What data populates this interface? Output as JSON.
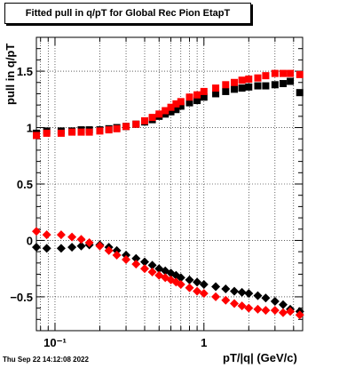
{
  "chart_data": {
    "type": "scatter",
    "title": "Fitted pull in q/pT for Global Rec Pion EtapT",
    "xlabel": "pT/|q| (GeV/c)",
    "ylabel": "pull in q/pT",
    "x_scale": "log",
    "xlim": [
      0.075,
      4.6
    ],
    "ylim": [
      -0.8,
      1.8
    ],
    "grid": true,
    "x_ticks": [
      {
        "value": 0.1,
        "label": "10⁻¹"
      },
      {
        "value": 1,
        "label": "1"
      }
    ],
    "y_ticks": [
      {
        "value": -0.5,
        "label": "−0.5"
      },
      {
        "value": 0,
        "label": "0"
      },
      {
        "value": 0.5,
        "label": "0.5"
      },
      {
        "value": 1,
        "label": "1"
      },
      {
        "value": 1.5,
        "label": "1.5"
      }
    ],
    "colors": {
      "black_series": "#000000",
      "red_series": "#ff0000"
    },
    "series": [
      {
        "color": "black_series",
        "marker": "square",
        "x": [
          0.075,
          0.088,
          0.11,
          0.13,
          0.15,
          0.17,
          0.2,
          0.23,
          0.26,
          0.3,
          0.35,
          0.4,
          0.45,
          0.5,
          0.55,
          0.6,
          0.65,
          0.7,
          0.8,
          0.9,
          1.0,
          1.2,
          1.4,
          1.6,
          1.8,
          2.0,
          2.3,
          2.6,
          3.0,
          3.4,
          3.8,
          4.4
        ],
        "y": [
          0.95,
          0.97,
          0.97,
          0.97,
          0.98,
          0.98,
          0.98,
          0.99,
          1.0,
          1.01,
          1.03,
          1.05,
          1.07,
          1.1,
          1.12,
          1.14,
          1.16,
          1.19,
          1.22,
          1.24,
          1.27,
          1.3,
          1.32,
          1.34,
          1.35,
          1.36,
          1.37,
          1.37,
          1.38,
          1.39,
          1.41,
          1.31
        ]
      },
      {
        "color": "red_series",
        "marker": "square",
        "x": [
          0.075,
          0.088,
          0.11,
          0.13,
          0.15,
          0.17,
          0.2,
          0.23,
          0.26,
          0.3,
          0.35,
          0.4,
          0.45,
          0.5,
          0.55,
          0.6,
          0.65,
          0.7,
          0.8,
          0.9,
          1.0,
          1.2,
          1.4,
          1.6,
          1.8,
          2.0,
          2.3,
          2.6,
          3.0,
          3.4,
          3.8,
          4.4
        ],
        "y": [
          0.93,
          0.95,
          0.95,
          0.96,
          0.96,
          0.96,
          0.97,
          0.98,
          0.99,
          1.01,
          1.03,
          1.06,
          1.09,
          1.12,
          1.15,
          1.18,
          1.21,
          1.23,
          1.27,
          1.29,
          1.32,
          1.35,
          1.38,
          1.4,
          1.42,
          1.43,
          1.44,
          1.46,
          1.48,
          1.48,
          1.48,
          1.47
        ]
      },
      {
        "color": "black_series",
        "marker": "diamond",
        "x": [
          0.075,
          0.088,
          0.11,
          0.13,
          0.15,
          0.17,
          0.2,
          0.23,
          0.26,
          0.3,
          0.35,
          0.4,
          0.45,
          0.5,
          0.55,
          0.6,
          0.65,
          0.7,
          0.8,
          0.9,
          1.0,
          1.2,
          1.4,
          1.6,
          1.8,
          2.0,
          2.3,
          2.6,
          3.0,
          3.4,
          3.8,
          4.4
        ],
        "y": [
          -0.06,
          -0.07,
          -0.07,
          -0.06,
          -0.05,
          -0.04,
          -0.04,
          -0.06,
          -0.09,
          -0.13,
          -0.16,
          -0.19,
          -0.22,
          -0.25,
          -0.27,
          -0.29,
          -0.31,
          -0.33,
          -0.35,
          -0.37,
          -0.39,
          -0.41,
          -0.43,
          -0.45,
          -0.46,
          -0.47,
          -0.49,
          -0.51,
          -0.54,
          -0.57,
          -0.61,
          -0.63
        ]
      },
      {
        "color": "red_series",
        "marker": "diamond",
        "x": [
          0.075,
          0.088,
          0.11,
          0.13,
          0.15,
          0.17,
          0.2,
          0.23,
          0.26,
          0.3,
          0.35,
          0.4,
          0.45,
          0.5,
          0.55,
          0.6,
          0.65,
          0.7,
          0.8,
          0.9,
          1.0,
          1.2,
          1.4,
          1.6,
          1.8,
          2.0,
          2.3,
          2.6,
          3.0,
          3.4,
          3.8,
          4.4
        ],
        "y": [
          0.08,
          0.05,
          0.05,
          0.03,
          0.01,
          -0.02,
          -0.05,
          -0.09,
          -0.13,
          -0.17,
          -0.21,
          -0.25,
          -0.28,
          -0.31,
          -0.33,
          -0.35,
          -0.37,
          -0.39,
          -0.42,
          -0.45,
          -0.47,
          -0.5,
          -0.53,
          -0.56,
          -0.58,
          -0.6,
          -0.61,
          -0.62,
          -0.62,
          -0.64,
          -0.63,
          -0.66
        ]
      }
    ]
  },
  "footer": {
    "timestamp": "Thu Sep 22 14:12:08 2022"
  }
}
